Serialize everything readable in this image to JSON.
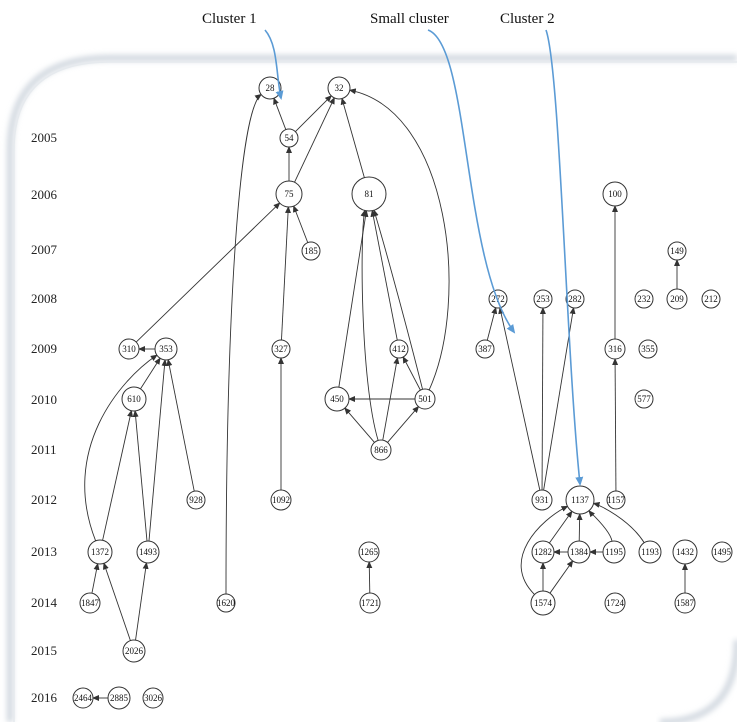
{
  "cluster_labels": [
    {
      "id": "c1",
      "text": "Cluster 1"
    },
    {
      "id": "c0",
      "text": "Small cluster"
    },
    {
      "id": "c2",
      "text": "Cluster 2"
    }
  ],
  "years": [
    "2005",
    "2006",
    "2007",
    "2008",
    "2009",
    "2010",
    "2011",
    "2012",
    "2013",
    "2014",
    "2015",
    "2016"
  ],
  "colors": {
    "pointer": "#5b9bd5",
    "edge": "#333333",
    "frame_shadow": "#cfd6de"
  },
  "nodes": [
    {
      "id": "28",
      "label": "28"
    },
    {
      "id": "32",
      "label": "32"
    },
    {
      "id": "54",
      "label": "54"
    },
    {
      "id": "75",
      "label": "75"
    },
    {
      "id": "81",
      "label": "81"
    },
    {
      "id": "100",
      "label": "100"
    },
    {
      "id": "185",
      "label": "185"
    },
    {
      "id": "149",
      "label": "149"
    },
    {
      "id": "272",
      "label": "272"
    },
    {
      "id": "253",
      "label": "253"
    },
    {
      "id": "282",
      "label": "282"
    },
    {
      "id": "232",
      "label": "232"
    },
    {
      "id": "209",
      "label": "209"
    },
    {
      "id": "212",
      "label": "212"
    },
    {
      "id": "310",
      "label": "310"
    },
    {
      "id": "353",
      "label": "353"
    },
    {
      "id": "327",
      "label": "327"
    },
    {
      "id": "412",
      "label": "412"
    },
    {
      "id": "387",
      "label": "387"
    },
    {
      "id": "316",
      "label": "316"
    },
    {
      "id": "355",
      "label": "355"
    },
    {
      "id": "610",
      "label": "610"
    },
    {
      "id": "450",
      "label": "450"
    },
    {
      "id": "501",
      "label": "501"
    },
    {
      "id": "577",
      "label": "577"
    },
    {
      "id": "866",
      "label": "866"
    },
    {
      "id": "928",
      "label": "928"
    },
    {
      "id": "1092",
      "label": "1092"
    },
    {
      "id": "931",
      "label": "931"
    },
    {
      "id": "1137",
      "label": "1137"
    },
    {
      "id": "1157",
      "label": "1157"
    },
    {
      "id": "1372",
      "label": "1372"
    },
    {
      "id": "1493",
      "label": "1493"
    },
    {
      "id": "1265",
      "label": "1265"
    },
    {
      "id": "1282",
      "label": "1282"
    },
    {
      "id": "1384",
      "label": "1384"
    },
    {
      "id": "1195",
      "label": "1195"
    },
    {
      "id": "1193",
      "label": "1193"
    },
    {
      "id": "1432",
      "label": "1432"
    },
    {
      "id": "1495",
      "label": "1495"
    },
    {
      "id": "1847",
      "label": "1847"
    },
    {
      "id": "1620",
      "label": "1620"
    },
    {
      "id": "1721",
      "label": "1721"
    },
    {
      "id": "1574",
      "label": "1574"
    },
    {
      "id": "1724",
      "label": "1724"
    },
    {
      "id": "1587",
      "label": "1587"
    },
    {
      "id": "2026",
      "label": "2026"
    },
    {
      "id": "2464",
      "label": "2464"
    },
    {
      "id": "2885",
      "label": "2885"
    },
    {
      "id": "3026",
      "label": "3026"
    }
  ],
  "edges": [
    {
      "from": "54",
      "to": "28"
    },
    {
      "from": "54",
      "to": "32"
    },
    {
      "from": "75",
      "to": "54"
    },
    {
      "from": "75",
      "to": "32"
    },
    {
      "from": "81",
      "to": "32"
    },
    {
      "from": "501",
      "to": "32"
    },
    {
      "from": "1620",
      "to": "28"
    },
    {
      "from": "185",
      "to": "75"
    },
    {
      "from": "327",
      "to": "75"
    },
    {
      "from": "310",
      "to": "75"
    },
    {
      "from": "1092",
      "to": "327"
    },
    {
      "from": "450",
      "to": "81"
    },
    {
      "from": "866",
      "to": "81"
    },
    {
      "from": "412",
      "to": "81"
    },
    {
      "from": "501",
      "to": "81"
    },
    {
      "from": "501",
      "to": "412"
    },
    {
      "from": "501",
      "to": "450"
    },
    {
      "from": "866",
      "to": "450"
    },
    {
      "from": "866",
      "to": "412"
    },
    {
      "from": "866",
      "to": "501"
    },
    {
      "from": "353",
      "to": "310"
    },
    {
      "from": "610",
      "to": "353"
    },
    {
      "from": "1372",
      "to": "353"
    },
    {
      "from": "1493",
      "to": "353"
    },
    {
      "from": "928",
      "to": "353"
    },
    {
      "from": "1372",
      "to": "610"
    },
    {
      "from": "1493",
      "to": "610"
    },
    {
      "from": "1847",
      "to": "1372"
    },
    {
      "from": "2026",
      "to": "1372"
    },
    {
      "from": "2026",
      "to": "1493"
    },
    {
      "from": "2885",
      "to": "2464"
    },
    {
      "from": "209",
      "to": "149"
    },
    {
      "from": "316",
      "to": "100"
    },
    {
      "from": "1157",
      "to": "316"
    },
    {
      "from": "387",
      "to": "272"
    },
    {
      "from": "931",
      "to": "272"
    },
    {
      "from": "931",
      "to": "253"
    },
    {
      "from": "931",
      "to": "282"
    },
    {
      "from": "1721",
      "to": "1265"
    },
    {
      "from": "1587",
      "to": "1432"
    },
    {
      "from": "1282",
      "to": "1137"
    },
    {
      "from": "1384",
      "to": "1137"
    },
    {
      "from": "1195",
      "to": "1137"
    },
    {
      "from": "1193",
      "to": "1137"
    },
    {
      "from": "1384",
      "to": "1282"
    },
    {
      "from": "1195",
      "to": "1384"
    },
    {
      "from": "1574",
      "to": "1282"
    },
    {
      "from": "1574",
      "to": "1384"
    },
    {
      "from": "1574",
      "to": "1137"
    }
  ]
}
